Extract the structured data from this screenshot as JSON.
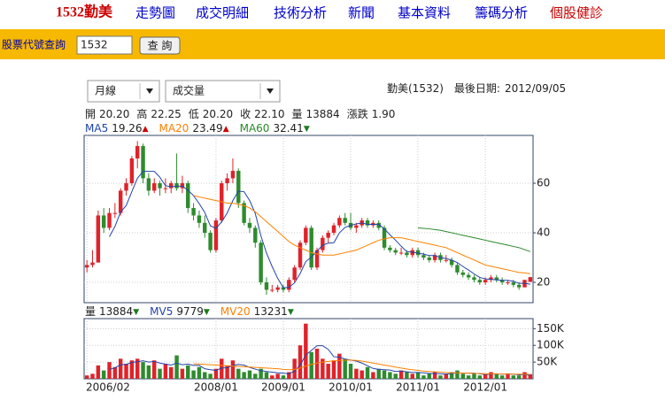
{
  "nav": {
    "logo": "1532勤美",
    "links": [
      "走勢圖",
      "成交明細",
      "技術分析",
      "新聞",
      "基本資料",
      "籌碼分析",
      "個股健診"
    ]
  },
  "search": {
    "label": "股票代號查詢",
    "input": "1532",
    "button": "查 詢"
  },
  "controls": {
    "period": "月線",
    "indicator": "成交量",
    "stock": "勤美(1532)",
    "last_date_label": "最後日期:",
    "last_date": "2012/09/05"
  },
  "info": [
    {
      "label": "開",
      "value": "20.20"
    },
    {
      "label": "高",
      "value": "22.25"
    },
    {
      "label": "低",
      "value": "20.20"
    },
    {
      "label": "收",
      "value": "22.10"
    },
    {
      "label": "量",
      "value": "13884"
    },
    {
      "label": "漲跌",
      "value": "1.90"
    }
  ],
  "chart_data": [
    {
      "type": "candlestick",
      "up_color": "#e0222a",
      "down_color": "#2e8b2e",
      "ylim": [
        11.8,
        79.3
      ],
      "yticks": [
        20,
        40,
        60
      ],
      "grid": true,
      "ohlc": [
        [
          26,
          29,
          24,
          27
        ],
        [
          27,
          33,
          26,
          28
        ],
        [
          28,
          49,
          28,
          47
        ],
        [
          47,
          50,
          40,
          42
        ],
        [
          42,
          50,
          41,
          48
        ],
        [
          48,
          52,
          46,
          48
        ],
        [
          48,
          58,
          47,
          57
        ],
        [
          57,
          62,
          55,
          60
        ],
        [
          60,
          71,
          59,
          70
        ],
        [
          70,
          77,
          66,
          75
        ],
        [
          75,
          76,
          60,
          62
        ],
        [
          62,
          64,
          55,
          57
        ],
        [
          57,
          62,
          56,
          60
        ],
        [
          60,
          61,
          55,
          58
        ],
        [
          58,
          62,
          56,
          58
        ],
        [
          58,
          61,
          56,
          60
        ],
        [
          60,
          72,
          57,
          58
        ],
        [
          58,
          63,
          56,
          60
        ],
        [
          60,
          61,
          48,
          50
        ],
        [
          50,
          52,
          45,
          47
        ],
        [
          47,
          49,
          42,
          44
        ],
        [
          44,
          47,
          38,
          40
        ],
        [
          40,
          41,
          32,
          33
        ],
        [
          33,
          46,
          32,
          45
        ],
        [
          45,
          61,
          44,
          60
        ],
        [
          60,
          64,
          57,
          62
        ],
        [
          62,
          70,
          60,
          65
        ],
        [
          65,
          66,
          50,
          52
        ],
        [
          52,
          53,
          43,
          44
        ],
        [
          44,
          46,
          40,
          42
        ],
        [
          42,
          43,
          34,
          36
        ],
        [
          36,
          37,
          19,
          20
        ],
        [
          20,
          22,
          15,
          17
        ],
        [
          17,
          19,
          16,
          17
        ],
        [
          17,
          19,
          16,
          18
        ],
        [
          18,
          19,
          16,
          17
        ],
        [
          17,
          22,
          16,
          21
        ],
        [
          21,
          27,
          20,
          26
        ],
        [
          26,
          37,
          25,
          36
        ],
        [
          36,
          43,
          35,
          42
        ],
        [
          42,
          43,
          25,
          26
        ],
        [
          26,
          34,
          25,
          33
        ],
        [
          33,
          39,
          32,
          38
        ],
        [
          38,
          41,
          36,
          40
        ],
        [
          40,
          44,
          39,
          43
        ],
        [
          43,
          47,
          42,
          46
        ],
        [
          46,
          48,
          43,
          44
        ],
        [
          44,
          48,
          41,
          42
        ],
        [
          42,
          44,
          40,
          43
        ],
        [
          43,
          46,
          42,
          45
        ],
        [
          45,
          46,
          42,
          43
        ],
        [
          43,
          45,
          42,
          44
        ],
        [
          44,
          45,
          41,
          42
        ],
        [
          42,
          43,
          33,
          34
        ],
        [
          34,
          35,
          32,
          33
        ],
        [
          33,
          34,
          31,
          32
        ],
        [
          32,
          34,
          31,
          32
        ],
        [
          32,
          33,
          30,
          31
        ],
        [
          31,
          34,
          30,
          33
        ],
        [
          33,
          34,
          30,
          31
        ],
        [
          31,
          32,
          29,
          30
        ],
        [
          30,
          31,
          28,
          29
        ],
        [
          29,
          32,
          28,
          31
        ],
        [
          31,
          32,
          28,
          29
        ],
        [
          29,
          31,
          28,
          29
        ],
        [
          29,
          30,
          26,
          27
        ],
        [
          27,
          28,
          23,
          24
        ],
        [
          24,
          25,
          22,
          23
        ],
        [
          23,
          24,
          21,
          22
        ],
        [
          22,
          23,
          20,
          21
        ],
        [
          21,
          22,
          19,
          20
        ],
        [
          20,
          22,
          19,
          21
        ],
        [
          21,
          23,
          20,
          22
        ],
        [
          22,
          23,
          20,
          21
        ],
        [
          21,
          22,
          19,
          20
        ],
        [
          20,
          21,
          19,
          20
        ],
        [
          20,
          21,
          18,
          19
        ],
        [
          19,
          20,
          17,
          18
        ],
        [
          18,
          21,
          18,
          21
        ],
        [
          20.2,
          22.25,
          20.2,
          22.1
        ]
      ],
      "series": [
        {
          "name": "MA5",
          "color": "#2244aa",
          "legend_value": "19.26",
          "legend_arrow": "▲",
          "values": [
            null,
            null,
            null,
            null,
            38.4,
            42.6,
            48.4,
            51,
            56.6,
            62,
            64.8,
            64.8,
            64.8,
            62.4,
            59,
            58.6,
            58.8,
            58.8,
            57.2,
            55,
            51.8,
            48.2,
            42.8,
            41.8,
            44.4,
            48,
            53,
            56.8,
            56.6,
            53,
            47.8,
            38.8,
            31.8,
            26.4,
            21.6,
            17.8,
            18,
            19.8,
            23.6,
            28.4,
            30.2,
            32.6,
            35,
            35.8,
            36,
            40,
            42.2,
            43,
            43.6,
            44,
            43.4,
            43.4,
            43.4,
            41.6,
            39.2,
            37,
            34.6,
            32.4,
            32.2,
            31.8,
            31.4,
            30.8,
            30.8,
            30,
            29.6,
            29,
            28,
            26.4,
            25,
            23.4,
            22,
            21.4,
            21.2,
            21,
            20.8,
            20.8,
            20.4,
            19.6,
            19.6,
            19.26
          ]
        },
        {
          "name": "MA20",
          "color": "#ff8000",
          "legend_value": "23.49",
          "legend_arrow": "▲",
          "values": [
            null,
            null,
            null,
            null,
            null,
            null,
            null,
            null,
            null,
            null,
            null,
            null,
            null,
            null,
            null,
            null,
            null,
            null,
            null,
            55,
            54.5,
            54,
            53.5,
            53,
            52.5,
            52,
            52,
            51.5,
            51,
            50,
            48.5,
            46.5,
            44.5,
            42.5,
            40.5,
            38.5,
            36.5,
            35,
            34,
            33,
            32,
            31.5,
            31,
            31,
            31,
            31.5,
            32,
            32.5,
            33,
            34,
            35,
            36,
            37,
            37.5,
            38,
            38,
            38,
            37.5,
            37,
            36.5,
            36,
            35.5,
            35,
            34.5,
            34,
            33,
            32,
            31,
            30,
            29,
            28,
            27,
            26.5,
            26,
            25.5,
            25,
            24.5,
            24,
            23.8,
            23.49
          ]
        },
        {
          "name": "MA60",
          "color": "#2a8a2a",
          "legend_value": "32.41",
          "legend_arrow": "▼",
          "values": [
            null,
            null,
            null,
            null,
            null,
            null,
            null,
            null,
            null,
            null,
            null,
            null,
            null,
            null,
            null,
            null,
            null,
            null,
            null,
            null,
            null,
            null,
            null,
            null,
            null,
            null,
            null,
            null,
            null,
            null,
            null,
            null,
            null,
            null,
            null,
            null,
            null,
            null,
            null,
            null,
            null,
            null,
            null,
            null,
            null,
            null,
            null,
            null,
            null,
            null,
            null,
            null,
            null,
            null,
            null,
            null,
            null,
            null,
            null,
            42,
            41.8,
            41.6,
            41.3,
            41,
            40.5,
            40,
            39.5,
            39,
            38.5,
            38,
            37.5,
            37,
            36.5,
            36,
            35.5,
            35,
            34.5,
            34,
            33.2,
            32.41
          ]
        }
      ]
    },
    {
      "type": "bar",
      "ylim": [
        0,
        180000
      ],
      "yticks": [
        {
          "value": 50000,
          "label": "50K"
        },
        {
          "value": 100000,
          "label": "100K"
        },
        {
          "value": 150000,
          "label": "150K"
        }
      ],
      "grid": true,
      "categories": [
        "2006/02",
        null,
        null,
        null,
        null,
        null,
        null,
        null,
        null,
        null,
        null,
        null,
        null,
        null,
        null,
        null,
        null,
        null,
        null,
        null,
        null,
        null,
        null,
        "2008/01",
        null,
        null,
        null,
        null,
        null,
        null,
        null,
        null,
        null,
        null,
        null,
        "2009/01",
        null,
        null,
        null,
        null,
        null,
        null,
        null,
        null,
        null,
        null,
        null,
        "2010/01",
        null,
        null,
        null,
        null,
        null,
        null,
        null,
        null,
        null,
        null,
        null,
        "2011/01",
        null,
        null,
        null,
        null,
        null,
        null,
        null,
        null,
        null,
        null,
        null,
        "2012/01",
        null,
        null,
        null,
        null,
        null,
        null,
        null,
        null
      ],
      "values": [
        10000,
        15000,
        40000,
        25000,
        50000,
        35000,
        60000,
        45000,
        55000,
        60000,
        50000,
        40000,
        55000,
        30000,
        45000,
        35000,
        70000,
        30000,
        40000,
        25000,
        35000,
        20000,
        15000,
        30000,
        60000,
        40000,
        55000,
        30000,
        20000,
        25000,
        15000,
        30000,
        20000,
        10000,
        15000,
        10000,
        20000,
        60000,
        100000,
        165000,
        80000,
        90000,
        60000,
        45000,
        55000,
        75000,
        60000,
        45000,
        30000,
        25000,
        35000,
        20000,
        30000,
        25000,
        20000,
        15000,
        25000,
        20000,
        15000,
        20000,
        10000,
        15000,
        20000,
        10000,
        15000,
        20000,
        25000,
        15000,
        10000,
        15000,
        10000,
        15000,
        20000,
        15000,
        10000,
        15000,
        10000,
        10000,
        20000,
        13884
      ],
      "value_legend": {
        "name": "量",
        "value": "13884",
        "arrow": "▼"
      },
      "series": [
        {
          "name": "MV5",
          "color": "#2244aa",
          "legend_value": "9779",
          "legend_arrow": "▼",
          "values": [
            null,
            null,
            null,
            null,
            28000,
            33000,
            42000,
            43000,
            49000,
            51000,
            54000,
            50000,
            52000,
            47000,
            44000,
            41000,
            47000,
            42000,
            44000,
            40000,
            40000,
            30000,
            27000,
            25000,
            32000,
            33000,
            40000,
            43000,
            41000,
            34000,
            29000,
            24000,
            22000,
            20000,
            18000,
            17000,
            15000,
            23000,
            41000,
            71000,
            85000,
            99000,
            99000,
            88000,
            66000,
            65000,
            59000,
            56000,
            53000,
            47000,
            39000,
            31000,
            28000,
            27000,
            26000,
            22000,
            23000,
            21000,
            19000,
            19000,
            18000,
            16000,
            16000,
            15000,
            14000,
            16000,
            18000,
            17000,
            17000,
            17000,
            15000,
            13000,
            14000,
            15000,
            14000,
            15000,
            14000,
            12000,
            13000,
            9779
          ]
        },
        {
          "name": "MV20",
          "color": "#ff8000",
          "legend_value": "13231",
          "legend_arrow": "▼",
          "values": [
            null,
            null,
            null,
            null,
            null,
            null,
            null,
            null,
            null,
            null,
            null,
            null,
            null,
            null,
            null,
            null,
            null,
            null,
            null,
            45000,
            44000,
            43000,
            42000,
            41000,
            40000,
            39000,
            38000,
            37000,
            36000,
            35000,
            34000,
            33000,
            32000,
            31000,
            30000,
            28000,
            27000,
            28000,
            32000,
            38000,
            43000,
            47000,
            50000,
            52000,
            54000,
            55000,
            56000,
            56000,
            55000,
            53000,
            50000,
            47000,
            44000,
            41000,
            38000,
            35000,
            32000,
            29000,
            27000,
            25000,
            23000,
            22000,
            21000,
            20000,
            19000,
            18000,
            18000,
            17000,
            17000,
            16000,
            16000,
            15000,
            15000,
            15000,
            14500,
            14000,
            14000,
            13800,
            13500,
            13231
          ]
        }
      ]
    }
  ]
}
